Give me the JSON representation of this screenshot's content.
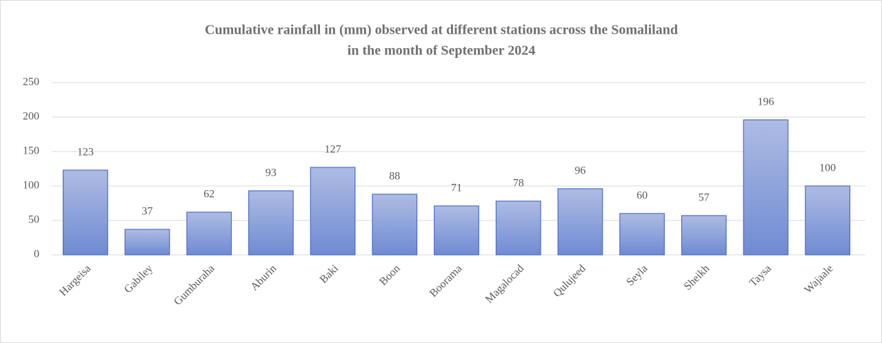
{
  "chart_data": {
    "type": "bar",
    "title": [
      "Cumulative rainfall in (mm) observed at different stations across the Somaliland",
      "in the month of September 2024"
    ],
    "categories": [
      "Hargeisa",
      "Gabiley",
      "Gumburaha",
      "Aburin",
      "Baki",
      "Boon",
      "Boorama",
      "Magalocad",
      "Qulujeed",
      "Seyla",
      "Sheikh",
      "Taysa",
      "Wajaale"
    ],
    "values": [
      123,
      37,
      62,
      93,
      127,
      88,
      71,
      78,
      96,
      60,
      57,
      196,
      100
    ],
    "color": "#7f97d8",
    "ylim": [
      0,
      250
    ],
    "yticks": [
      0,
      50,
      100,
      150,
      200,
      250
    ],
    "grid": true
  }
}
